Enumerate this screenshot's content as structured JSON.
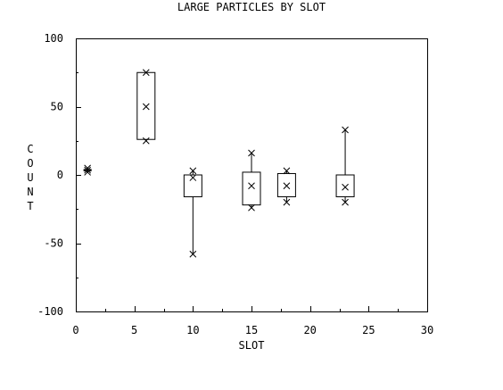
{
  "chart_data": {
    "type": "box",
    "title": "LARGE PARTICLES BY SLOT",
    "xlabel": "SLOT",
    "ylabel": "COUNT",
    "xlim": [
      0,
      30
    ],
    "ylim": [
      -100,
      100
    ],
    "x_ticks": [
      0,
      5,
      10,
      15,
      20,
      25,
      30
    ],
    "y_ticks": [
      -100,
      -50,
      0,
      50,
      100
    ],
    "grid": false,
    "boxes": [
      {
        "slot": 1,
        "min": 2,
        "q1": 3,
        "median": 3.5,
        "q3": 4,
        "max": 5
      },
      {
        "slot": 6,
        "min": 25,
        "q1": 26,
        "median": 50,
        "q3": 75,
        "max": 75
      },
      {
        "slot": 10,
        "min": -58,
        "q1": -16,
        "median": -2,
        "q3": 0,
        "max": 3
      },
      {
        "slot": 15,
        "min": -24,
        "q1": -22,
        "median": -8,
        "q3": 2,
        "max": 16
      },
      {
        "slot": 18,
        "min": -20,
        "q1": -16,
        "median": -8,
        "q3": 1,
        "max": 3
      },
      {
        "slot": 23,
        "min": -20,
        "q1": -16,
        "median": -9,
        "q3": 0,
        "max": 33
      }
    ]
  }
}
